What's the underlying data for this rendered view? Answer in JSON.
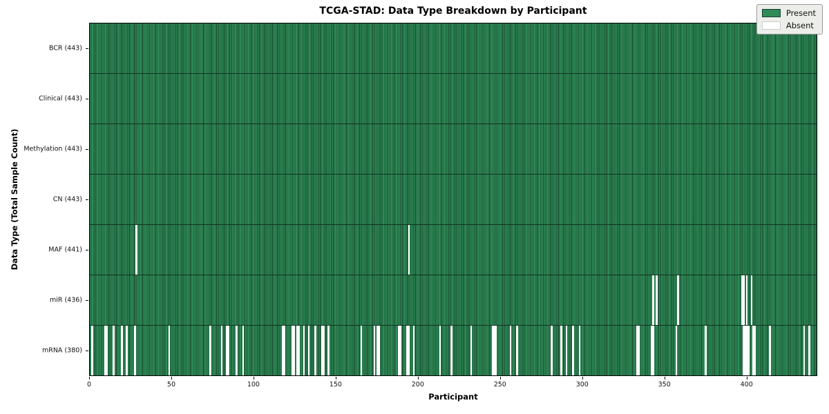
{
  "chart_data": {
    "type": "heatmap",
    "title": "TCGA-STAD: Data Type Breakdown by Participant",
    "xlabel": "Participant",
    "ylabel": "Data Type (Total Sample Count)",
    "n_participants": 443,
    "x_ticks": [
      0,
      50,
      100,
      150,
      200,
      250,
      300,
      350,
      400
    ],
    "legend": [
      {
        "label": "Present",
        "color": "#2e8b57"
      },
      {
        "label": "Absent",
        "color": "#ffffff"
      }
    ],
    "colors": {
      "present": "#2e8b57",
      "bar_edge": "#16402a",
      "absent": "#ffffff",
      "row_divider": "#14301f",
      "legend_bg": "#ecefe9",
      "legend_border": "#9a9a9a"
    },
    "rows": [
      {
        "name": "BCR",
        "label": "BCR (443)",
        "present_count": 443,
        "absent_participants": []
      },
      {
        "name": "Clinical",
        "label": "Clinical (443)",
        "present_count": 443,
        "absent_participants": []
      },
      {
        "name": "Methylation",
        "label": "Methylation (443)",
        "present_count": 443,
        "absent_participants": []
      },
      {
        "name": "CN",
        "label": "CN (443)",
        "present_count": 443,
        "absent_participants": []
      },
      {
        "name": "MAF",
        "label": "MAF (441)",
        "present_count": 441,
        "absent_participants": [
          28,
          194
        ]
      },
      {
        "name": "miR",
        "label": "miR (436)",
        "present_count": 436,
        "absent_participants": [
          343,
          345,
          358,
          397,
          398,
          400,
          403
        ]
      },
      {
        "name": "mRNA",
        "label": "mRNA (380)",
        "present_count": 380,
        "absent_participants": [
          1,
          9,
          10,
          14,
          19,
          22,
          27,
          48,
          73,
          80,
          83,
          84,
          89,
          93,
          117,
          118,
          123,
          124,
          126,
          127,
          130,
          133,
          137,
          141,
          142,
          145,
          165,
          173,
          175,
          176,
          188,
          189,
          193,
          194,
          197,
          213,
          220,
          232,
          245,
          246,
          247,
          256,
          260,
          281,
          287,
          290,
          294,
          298,
          333,
          334,
          342,
          343,
          357,
          375,
          398,
          399,
          400,
          401,
          404,
          405,
          414,
          435,
          438
        ]
      }
    ]
  }
}
